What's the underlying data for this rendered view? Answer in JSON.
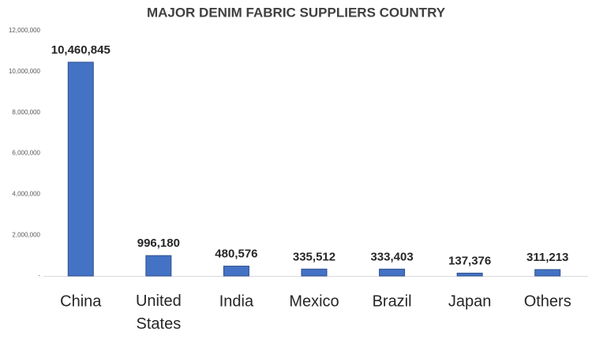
{
  "chart_data": {
    "type": "bar",
    "title": "MAJOR DENIM FABRIC SUPPLIERS COUNTRY",
    "categories": [
      "China",
      "United States",
      "India",
      "Mexico",
      "Brazil",
      "Japan",
      "Others"
    ],
    "values": [
      10460845,
      996180,
      480576,
      335512,
      333403,
      137376,
      311213
    ],
    "value_labels": [
      "10,460,845",
      "996,180",
      "480,576",
      "335,512",
      "333,403",
      "137,376",
      "311,213"
    ],
    "color": "#4472c4",
    "ylim": [
      0,
      12000000
    ],
    "yticks": [
      {
        "value": 0,
        "label": "-"
      },
      {
        "value": 2000000,
        "label": "2,000,000"
      },
      {
        "value": 4000000,
        "label": "4,000,000"
      },
      {
        "value": 6000000,
        "label": "6,000,000"
      },
      {
        "value": 8000000,
        "label": "8,000,000"
      },
      {
        "value": 10000000,
        "label": "10,000,000"
      },
      {
        "value": 12000000,
        "label": "12,000,000"
      }
    ],
    "grid": false
  }
}
